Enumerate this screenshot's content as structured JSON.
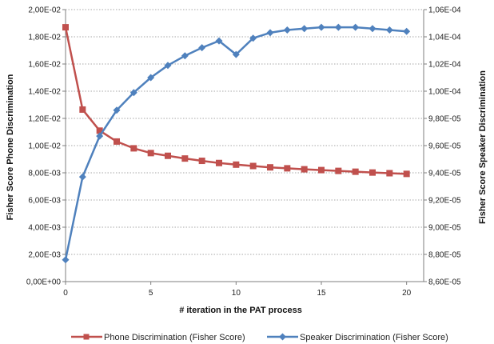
{
  "chart_data": {
    "type": "line",
    "x": [
      0,
      1,
      2,
      3,
      4,
      5,
      6,
      7,
      8,
      9,
      10,
      11,
      12,
      13,
      14,
      15,
      16,
      17,
      18,
      19,
      20
    ],
    "xlabel": "# iteration in the PAT process",
    "xlim": [
      0,
      21
    ],
    "xticks": [
      0,
      5,
      10,
      15,
      20
    ],
    "y_left": {
      "label": "Fisher Score Phone Discrimination",
      "lim": [
        0,
        0.02
      ],
      "tick_values": [
        0,
        0.002,
        0.004,
        0.006,
        0.008,
        0.01,
        0.012,
        0.014,
        0.016,
        0.018,
        0.02
      ],
      "tick_labels": [
        "0,00E+00",
        "2,00E-03",
        "4,00E-03",
        "6,00E-03",
        "8,00E-03",
        "1,00E-02",
        "1,20E-02",
        "1,40E-02",
        "1,60E-02",
        "1,80E-02",
        "2,00E-02"
      ]
    },
    "y_right": {
      "label": "Fisher Score Speaker Discrimination",
      "lim": [
        8.6e-05,
        0.000106
      ],
      "tick_values": [
        8.6e-05,
        8.8e-05,
        9e-05,
        9.2e-05,
        9.4e-05,
        9.6e-05,
        9.8e-05,
        0.0001,
        0.000102,
        0.000104,
        0.000106
      ],
      "tick_labels": [
        "8,60E-05",
        "8,80E-05",
        "9,00E-05",
        "9,20E-05",
        "9,40E-05",
        "9,60E-05",
        "9,80E-05",
        "1,00E-04",
        "1,02E-04",
        "1,04E-04",
        "1,06E-04"
      ]
    },
    "grid": true,
    "legend": "bottom",
    "series": [
      {
        "name": "Phone Discrimination (Fisher Score)",
        "axis": "left",
        "marker": "square",
        "color": "#C0504D",
        "values": [
          0.0187,
          0.01265,
          0.0111,
          0.0103,
          0.0098,
          0.00945,
          0.00925,
          0.00905,
          0.00888,
          0.00872,
          0.0086,
          0.0085,
          0.0084,
          0.00833,
          0.00826,
          0.0082,
          0.00814,
          0.00808,
          0.00802,
          0.00797,
          0.00792
        ]
      },
      {
        "name": "Speaker Discrimination (Fisher Score)",
        "axis": "right",
        "marker": "diamond",
        "color": "#4F81BD",
        "values": [
          8.76e-05,
          9.37e-05,
          9.67e-05,
          9.86e-05,
          9.99e-05,
          0.000101,
          0.0001019,
          0.0001026,
          0.0001032,
          0.0001037,
          0.0001027,
          0.0001039,
          0.0001043,
          0.0001045,
          0.0001046,
          0.0001047,
          0.0001047,
          0.0001047,
          0.0001046,
          0.0001045,
          0.0001044
        ]
      }
    ]
  }
}
